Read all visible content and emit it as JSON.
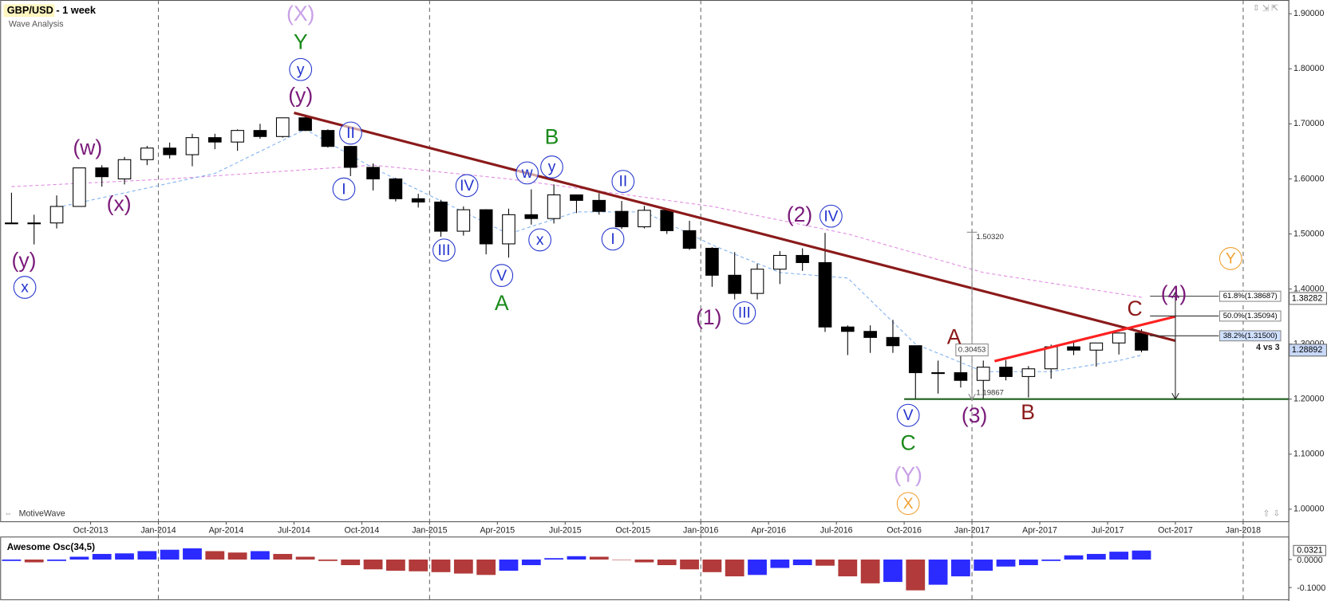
{
  "chart_data": [
    {
      "type": "candlestick",
      "title": "GBP/USD - 1 week",
      "subtitle": "Wave Analysis",
      "watermark": "MotiveWave",
      "x": [
        "2013-06",
        "2013-07",
        "2013-08",
        "2013-09",
        "2013-10",
        "2013-11",
        "2013-12",
        "2014-01",
        "2014-02",
        "2014-03",
        "2014-04",
        "2014-05",
        "2014-06",
        "2014-07",
        "2014-08",
        "2014-09",
        "2014-10",
        "2014-11",
        "2014-12",
        "2015-01",
        "2015-02",
        "2015-03",
        "2015-04",
        "2015-05",
        "2015-06",
        "2015-07",
        "2015-08",
        "2015-09",
        "2015-10",
        "2015-11",
        "2015-12",
        "2016-01",
        "2016-02",
        "2016-03",
        "2016-04",
        "2016-05",
        "2016-06",
        "2016-07",
        "2016-08",
        "2016-09",
        "2016-10",
        "2016-11",
        "2016-12",
        "2017-01",
        "2017-02",
        "2017-03",
        "2017-04",
        "2017-05",
        "2017-06",
        "2017-07",
        "2017-08"
      ],
      "open": [
        1.52,
        1.52,
        1.52,
        1.55,
        1.62,
        1.6,
        1.635,
        1.656,
        1.644,
        1.675,
        1.667,
        1.688,
        1.677,
        1.711,
        1.688,
        1.659,
        1.621,
        1.6,
        1.564,
        1.558,
        1.505,
        1.544,
        1.482,
        1.535,
        1.528,
        1.571,
        1.561,
        1.541,
        1.513,
        1.543,
        1.506,
        1.474,
        1.425,
        1.392,
        1.436,
        1.461,
        1.448,
        1.331,
        1.323,
        1.312,
        1.297,
        1.248,
        1.248,
        1.234,
        1.258,
        1.241,
        1.255,
        1.295,
        1.289,
        1.302,
        1.32
      ],
      "high": [
        1.575,
        1.535,
        1.57,
        1.62,
        1.625,
        1.64,
        1.66,
        1.666,
        1.682,
        1.682,
        1.69,
        1.7,
        1.711,
        1.717,
        1.69,
        1.66,
        1.628,
        1.602,
        1.573,
        1.562,
        1.55,
        1.545,
        1.546,
        1.581,
        1.59,
        1.571,
        1.574,
        1.56,
        1.551,
        1.545,
        1.524,
        1.476,
        1.467,
        1.446,
        1.469,
        1.474,
        1.502,
        1.334,
        1.334,
        1.344,
        1.297,
        1.27,
        1.285,
        1.27,
        1.271,
        1.26,
        1.299,
        1.305,
        1.302,
        1.321,
        1.327
      ],
      "low": [
        1.518,
        1.481,
        1.51,
        1.55,
        1.586,
        1.59,
        1.625,
        1.637,
        1.623,
        1.654,
        1.651,
        1.673,
        1.675,
        1.687,
        1.657,
        1.605,
        1.579,
        1.559,
        1.548,
        1.495,
        1.497,
        1.463,
        1.457,
        1.517,
        1.519,
        1.538,
        1.535,
        1.509,
        1.51,
        1.5,
        1.471,
        1.404,
        1.381,
        1.381,
        1.409,
        1.433,
        1.322,
        1.28,
        1.284,
        1.284,
        1.199,
        1.21,
        1.221,
        1.199,
        1.234,
        1.203,
        1.237,
        1.28,
        1.259,
        1.281,
        1.285
      ],
      "close": [
        1.52,
        1.52,
        1.55,
        1.62,
        1.604,
        1.635,
        1.656,
        1.644,
        1.675,
        1.667,
        1.688,
        1.677,
        1.711,
        1.688,
        1.659,
        1.621,
        1.6,
        1.564,
        1.558,
        1.505,
        1.544,
        1.482,
        1.535,
        1.528,
        1.571,
        1.561,
        1.541,
        1.513,
        1.543,
        1.506,
        1.474,
        1.425,
        1.392,
        1.436,
        1.461,
        1.448,
        1.331,
        1.323,
        1.312,
        1.297,
        1.248,
        1.248,
        1.234,
        1.258,
        1.241,
        1.255,
        1.295,
        1.289,
        1.302,
        1.32,
        1.28892
      ],
      "up_color": "#ffffff",
      "down_color": "#000000",
      "xlim": [
        "2013-06",
        "2018-03"
      ],
      "xticks": [
        {
          "value": "2013-10",
          "label": "Oct-2013"
        },
        {
          "value": "2014-01",
          "label": "Jan-2014"
        },
        {
          "value": "2014-04",
          "label": "Apr-2014"
        },
        {
          "value": "2014-07",
          "label": "Jul-2014"
        },
        {
          "value": "2014-10",
          "label": "Oct-2014"
        },
        {
          "value": "2015-01",
          "label": "Jan-2015"
        },
        {
          "value": "2015-04",
          "label": "Apr-2015"
        },
        {
          "value": "2015-07",
          "label": "Jul-2015"
        },
        {
          "value": "2015-10",
          "label": "Oct-2015"
        },
        {
          "value": "2016-01",
          "label": "Jan-2016"
        },
        {
          "value": "2016-04",
          "label": "Apr-2016"
        },
        {
          "value": "2016-07",
          "label": "Jul-2016"
        },
        {
          "value": "2016-10",
          "label": "Oct-2016"
        },
        {
          "value": "2017-01",
          "label": "Jan-2017"
        },
        {
          "value": "2017-04",
          "label": "Apr-2017"
        },
        {
          "value": "2017-07",
          "label": "Jul-2017"
        },
        {
          "value": "2017-10",
          "label": "Oct-2017"
        },
        {
          "value": "2018-01",
          "label": "Jan-2018"
        }
      ],
      "year_lines": true,
      "ylim": [
        0.978,
        1.925
      ],
      "yticks": [
        {
          "value": 1.0,
          "label": "1.00000"
        },
        {
          "value": 1.1,
          "label": "1.10000"
        },
        {
          "value": 1.2,
          "label": "1.20000"
        },
        {
          "value": 1.3,
          "label": "1.30000"
        },
        {
          "value": 1.4,
          "label": "1.40000"
        },
        {
          "value": 1.5,
          "label": "1.50000"
        },
        {
          "value": 1.6,
          "label": "1.60000"
        },
        {
          "value": 1.7,
          "label": "1.70000"
        },
        {
          "value": 1.8,
          "label": "1.80000"
        },
        {
          "value": 1.9,
          "label": "1.90000"
        }
      ],
      "price_markers": [
        {
          "value": 1.38282,
          "label": "1.38282"
        },
        {
          "value": 1.28892,
          "label": "1.28892"
        }
      ],
      "moving_averages": [
        {
          "color": "#e08ae0",
          "x": [
            "2013-06",
            "2014-01",
            "2014-10",
            "2015-04",
            "2016-01",
            "2016-07",
            "2017-01",
            "2017-08"
          ],
          "values": [
            1.586,
            1.6,
            1.625,
            1.6,
            1.55,
            1.5,
            1.43,
            1.385
          ]
        },
        {
          "color": "#7fb0ee",
          "x": [
            "2013-08",
            "2014-03",
            "2014-07",
            "2014-10",
            "2015-01",
            "2015-04",
            "2015-07",
            "2015-10",
            "2016-01",
            "2016-04",
            "2016-07",
            "2016-10",
            "2017-01",
            "2017-04",
            "2017-07",
            "2017-08"
          ],
          "values": [
            1.548,
            1.61,
            1.69,
            1.62,
            1.56,
            1.5,
            1.54,
            1.54,
            1.48,
            1.43,
            1.42,
            1.3,
            1.25,
            1.25,
            1.27,
            1.28
          ]
        }
      ],
      "trendlines": [
        {
          "color": "#8b1a1a",
          "x": [
            "2014-07",
            "2017-10"
          ],
          "values": [
            1.72,
            1.306
          ]
        },
        {
          "color": "#ff2020",
          "x": [
            "2017-02",
            "2017-10"
          ],
          "values": [
            1.269,
            1.35
          ]
        },
        {
          "color": "#1f5e1f",
          "x": [
            "2016-10",
            "2018-03"
          ],
          "values": [
            1.2,
            1.2
          ]
        }
      ],
      "target_arrow": {
        "x": "2017-10",
        "values": [
          1.394,
          1.2
        ]
      },
      "fib_levels": [
        {
          "value": 1.38687,
          "label": "61.8%(1.38687)"
        },
        {
          "value": 1.35094,
          "label": "50.0%(1.35094)"
        },
        {
          "value": 1.315,
          "label": "38.2%(1.31500)"
        }
      ],
      "measure": {
        "x": "2017-01",
        "high": {
          "value": 1.5032,
          "label": "1.50320"
        },
        "low": {
          "value": 1.19867,
          "label": "1.19867"
        },
        "difference": 0.30453
      },
      "note": "4 vs 3",
      "wave_labels": [
        "(X)",
        "Y",
        "y",
        "(y)",
        "(w)",
        "(x)",
        "(y)",
        "x",
        "II",
        "I",
        "III",
        "IV",
        "V",
        "A",
        "w",
        "y",
        "B",
        "x",
        "II",
        "I",
        "(2)",
        "IV",
        "III",
        "(1)",
        "A",
        "V",
        "C",
        "(Y)",
        "X",
        "(3)",
        "B",
        "C",
        "(4)",
        "Y"
      ]
    },
    {
      "type": "bar",
      "title": "Awesome Osc(34,5)",
      "x": [
        "2013-06",
        "2013-07",
        "2013-08",
        "2013-09",
        "2013-10",
        "2013-11",
        "2013-12",
        "2014-01",
        "2014-02",
        "2014-03",
        "2014-04",
        "2014-05",
        "2014-06",
        "2014-07",
        "2014-08",
        "2014-09",
        "2014-10",
        "2014-11",
        "2014-12",
        "2015-01",
        "2015-02",
        "2015-03",
        "2015-04",
        "2015-05",
        "2015-06",
        "2015-07",
        "2015-08",
        "2015-09",
        "2015-10",
        "2015-11",
        "2015-12",
        "2016-01",
        "2016-02",
        "2016-03",
        "2016-04",
        "2016-05",
        "2016-06",
        "2016-07",
        "2016-08",
        "2016-09",
        "2016-10",
        "2016-11",
        "2016-12",
        "2017-01",
        "2017-02",
        "2017-03",
        "2017-04",
        "2017-05",
        "2017-06",
        "2017-07",
        "2017-08"
      ],
      "values": [
        -0.005,
        -0.01,
        -0.005,
        0.01,
        0.02,
        0.022,
        0.03,
        0.035,
        0.04,
        0.03,
        0.025,
        0.03,
        0.02,
        0.01,
        -0.005,
        -0.02,
        -0.035,
        -0.04,
        -0.042,
        -0.045,
        -0.05,
        -0.055,
        -0.04,
        -0.02,
        0.005,
        0.012,
        0.01,
        0.0,
        -0.01,
        -0.02,
        -0.035,
        -0.045,
        -0.06,
        -0.055,
        -0.03,
        -0.02,
        -0.022,
        -0.06,
        -0.085,
        -0.08,
        -0.11,
        -0.09,
        -0.06,
        -0.04,
        -0.025,
        -0.02,
        -0.005,
        0.015,
        0.02,
        0.028,
        0.0321
      ],
      "up_color": "#2b2bff",
      "down_color": "#b23a3a",
      "xlim": [
        "2013-06",
        "2018-03"
      ],
      "ylim": [
        -0.142,
        0.082
      ],
      "yticks": [
        {
          "value": 0,
          "label": "0.0000"
        },
        {
          "value": -0.1,
          "label": "-0.1000"
        }
      ],
      "last_marker": {
        "value": 0.0321,
        "label": "0.0321"
      }
    }
  ]
}
